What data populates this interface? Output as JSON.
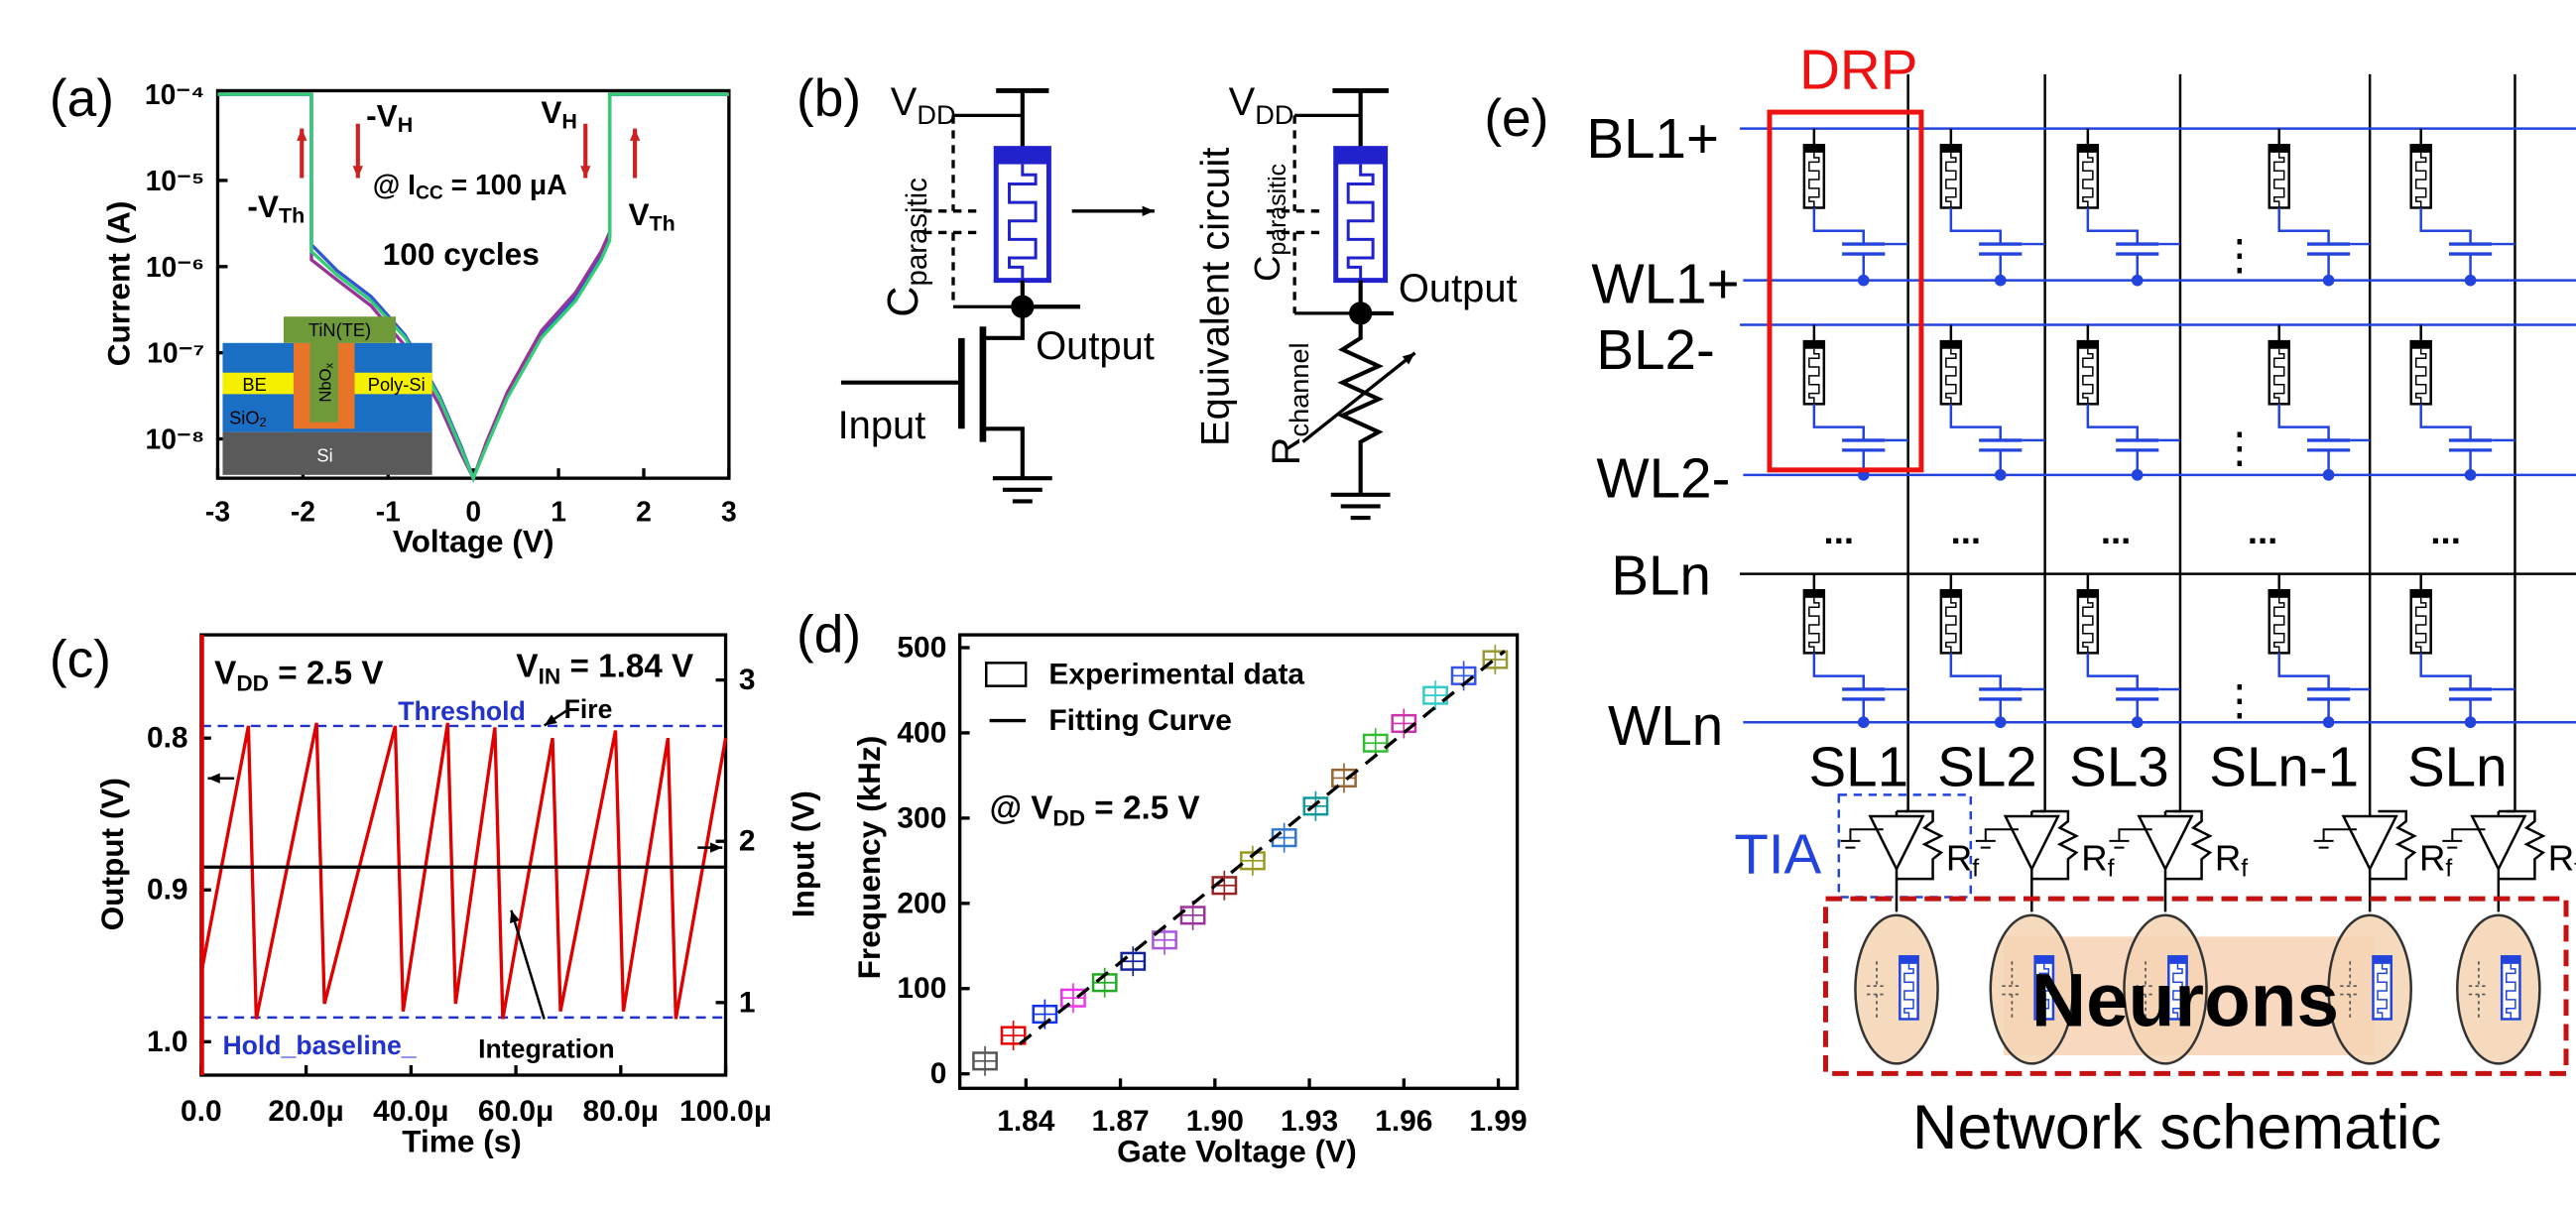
{
  "panel_labels": [
    "(a)",
    "(b)",
    "(c)",
    "(d)",
    "(e)"
  ],
  "chart_data": [
    {
      "type": "line",
      "x_label": "Voltage (V)",
      "y_label": "Current (A)",
      "log_y": true,
      "xlim": [
        -3,
        3
      ],
      "xticks": [
        -3,
        -2,
        -1,
        0,
        1,
        2,
        3
      ],
      "ylim": [
        3.5e-09,
        0.00011
      ],
      "yticks": [
        {
          "value": 1e-08,
          "label": "10⁻⁸"
        },
        {
          "value": 1e-07,
          "label": "10⁻⁷"
        },
        {
          "value": 1e-06,
          "label": "10⁻⁶"
        },
        {
          "value": 1e-05,
          "label": "10⁻⁵"
        },
        {
          "value": 0.0001,
          "label": "10⁻⁴"
        }
      ],
      "x": [
        -3,
        -2.2,
        -1.9,
        -1.9,
        -1.6,
        -1.2,
        -0.8,
        -0.4,
        -0.15,
        0,
        0.15,
        0.4,
        0.8,
        1.2,
        1.5,
        1.6,
        1.6,
        2.2,
        3
      ],
      "series": [
        {
          "color": "#3355cc",
          "values": [
            0.0001,
            0.0001,
            0.0001,
            1.8e-06,
            9e-07,
            4.5e-07,
            1.6e-07,
            3.2e-08,
            8.5e-09,
            3.5e-09,
            8.5e-09,
            3.2e-08,
            1.6e-07,
            4.5e-07,
            1.3e-06,
            2.2e-06,
            0.0001,
            0.0001,
            0.0001
          ]
        },
        {
          "color": "#993399",
          "values": [
            0.0001,
            0.0001,
            0.0001,
            1.2e-06,
            7e-07,
            3.5e-07,
            1.2e-07,
            2.5e-08,
            7e-09,
            3.5e-09,
            9e-09,
            3.5e-08,
            1.8e-07,
            5e-07,
            1.5e-06,
            2.5e-06,
            0.0001,
            0.0001,
            0.0001
          ]
        },
        {
          "color": "#33cc77",
          "values": [
            0.0001,
            0.0001,
            0.0001,
            1.5e-06,
            8e-07,
            4e-07,
            1.5e-07,
            3e-08,
            8e-09,
            3.5e-09,
            8e-09,
            3e-08,
            1.5e-07,
            4e-07,
            1.2e-06,
            2e-06,
            0.0001,
            0.0001,
            0.0001
          ]
        }
      ],
      "annotations": [
        {
          "text": "-V",
          "sub": "H"
        },
        {
          "text": "V",
          "sub": "H"
        },
        {
          "text": "-V",
          "sub": "Th"
        },
        {
          "text": "V",
          "sub": "Th"
        },
        {
          "text": "@ I",
          "sub": "CC",
          "after": " = 100 μA"
        },
        "100 cycles"
      ],
      "inset": [
        "TiN(TE)",
        "BE",
        {
          "text": "NbO",
          "sub": "x"
        },
        "Poly-Si",
        {
          "text": "SiO",
          "sub": "2"
        },
        "Si"
      ]
    },
    {
      "type": "line",
      "x_label": "Time (s)",
      "y_label": "Output (V)",
      "y2_label": "Input (V)",
      "xlim": [
        0,
        0.0001
      ],
      "xticks": [
        {
          "value": 0,
          "label": "0.0"
        },
        {
          "value": 2e-05,
          "label": "20.0μ"
        },
        {
          "value": 4e-05,
          "label": "40.0μ"
        },
        {
          "value": 6e-05,
          "label": "60.0μ"
        },
        {
          "value": 8e-05,
          "label": "80.0μ"
        },
        {
          "value": 0.0001,
          "label": "100.0μ"
        }
      ],
      "ylim": [
        1.022,
        0.732
      ],
      "yticks": [
        0.8,
        0.9,
        {
          "value": 1.0,
          "label": "1.0"
        }
      ],
      "y2lim": [
        0.55,
        3.28
      ],
      "y2ticks": [
        1,
        2,
        3
      ],
      "series": [
        {
          "color": "#e00000",
          "x": [
            0,
            9e-06,
            1.05e-05,
            2.2e-05,
            2.35e-05,
            3.7e-05,
            3.85e-05,
            4.7e-05,
            4.85e-05,
            5.6e-05,
            5.75e-05,
            6.7e-05,
            6.85e-05,
            7.9e-05,
            8.05e-05,
            8.9e-05,
            9.05e-05,
            0.0001
          ],
          "values": [
            0.955,
            0.792,
            0.985,
            0.79,
            0.975,
            0.792,
            0.98,
            0.79,
            0.975,
            0.793,
            0.985,
            0.8,
            0.98,
            0.795,
            0.98,
            0.8,
            0.985,
            0.8
          ]
        },
        {
          "color": "#000000",
          "axis": "y2",
          "x": [
            0,
            0.0001
          ],
          "values": [
            1.84,
            1.84
          ]
        }
      ],
      "hlines": [
        {
          "label": "Threshold",
          "value": 0.792,
          "color": "#2233cc"
        },
        {
          "label": "Hold_baseline_",
          "value": 0.984,
          "color": "#2233cc"
        }
      ],
      "annotations": [
        {
          "text": "V",
          "sub": "DD",
          "after": " = 2.5 V"
        },
        {
          "text": "V",
          "sub": "IN",
          "after": " = 1.84 V"
        },
        "Fire",
        "Integration"
      ]
    },
    {
      "type": "scatter",
      "x_label": "Gate Voltage (V)",
      "y_label": "Frequency (kHz)",
      "xlim": [
        1.819,
        1.996
      ],
      "xticks": [
        1.84,
        1.87,
        {
          "value": 1.9,
          "label": "1.90"
        },
        1.93,
        1.96,
        1.99
      ],
      "ylim": [
        -17,
        515
      ],
      "yticks": [
        0,
        100,
        200,
        300,
        400,
        500
      ],
      "series": [
        {
          "name": "Experimental data",
          "x": [
            1.827,
            1.836,
            1.846,
            1.855,
            1.865,
            1.874,
            1.884,
            1.893,
            1.903,
            1.912,
            1.922,
            1.932,
            1.941,
            1.951,
            1.96,
            1.97,
            1.979,
            1.989
          ],
          "values": [
            15,
            45,
            70,
            89,
            107,
            132,
            157,
            186,
            221,
            250,
            277,
            314,
            347,
            388,
            411,
            444,
            467,
            486
          ],
          "colors": [
            "#555555",
            "#ee0000",
            "#1133ee",
            "#ee33ee",
            "#22aa22",
            "#112299",
            "#aa55dd",
            "#993399",
            "#992222",
            "#999922",
            "#3377cc",
            "#119999",
            "#996633",
            "#33bb33",
            "#cc33aa",
            "#33cccc",
            "#3355ee",
            "#999933"
          ]
        },
        {
          "name": "Fitting Curve",
          "color": "#000000",
          "dash": true,
          "x": [
            1.838,
            1.992
          ],
          "values": [
            35,
            496
          ]
        }
      ],
      "annotations": [
        {
          "text": "@ V",
          "sub": "DD",
          "after": " = 2.5 V"
        }
      ]
    }
  ],
  "diagram_b": {
    "vdd": {
      "text": "V",
      "sub": "DD"
    },
    "c_parasitic": {
      "text": "C",
      "sub": "parasitic"
    },
    "output": "Output",
    "input": "Input",
    "equivalent_circuit": "Equivalent circuit",
    "r_channel": {
      "text": "R",
      "sub": "channel"
    }
  },
  "diagram_e": {
    "drp": "DRP",
    "rows": [
      "BL1+",
      "WL1+",
      "BL2-",
      "WL2-",
      "BLn",
      "WLn"
    ],
    "source_lines": [
      "SL1",
      "SL2",
      "SL3",
      "SLn-1",
      "SLn"
    ],
    "tia": "TIA",
    "feedback_resistor": {
      "text": "R",
      "sub": "f"
    },
    "ellipsis": "...",
    "vertical_ellipsis": "⋮",
    "neurons": "Neurons",
    "caption": "Network schematic"
  }
}
